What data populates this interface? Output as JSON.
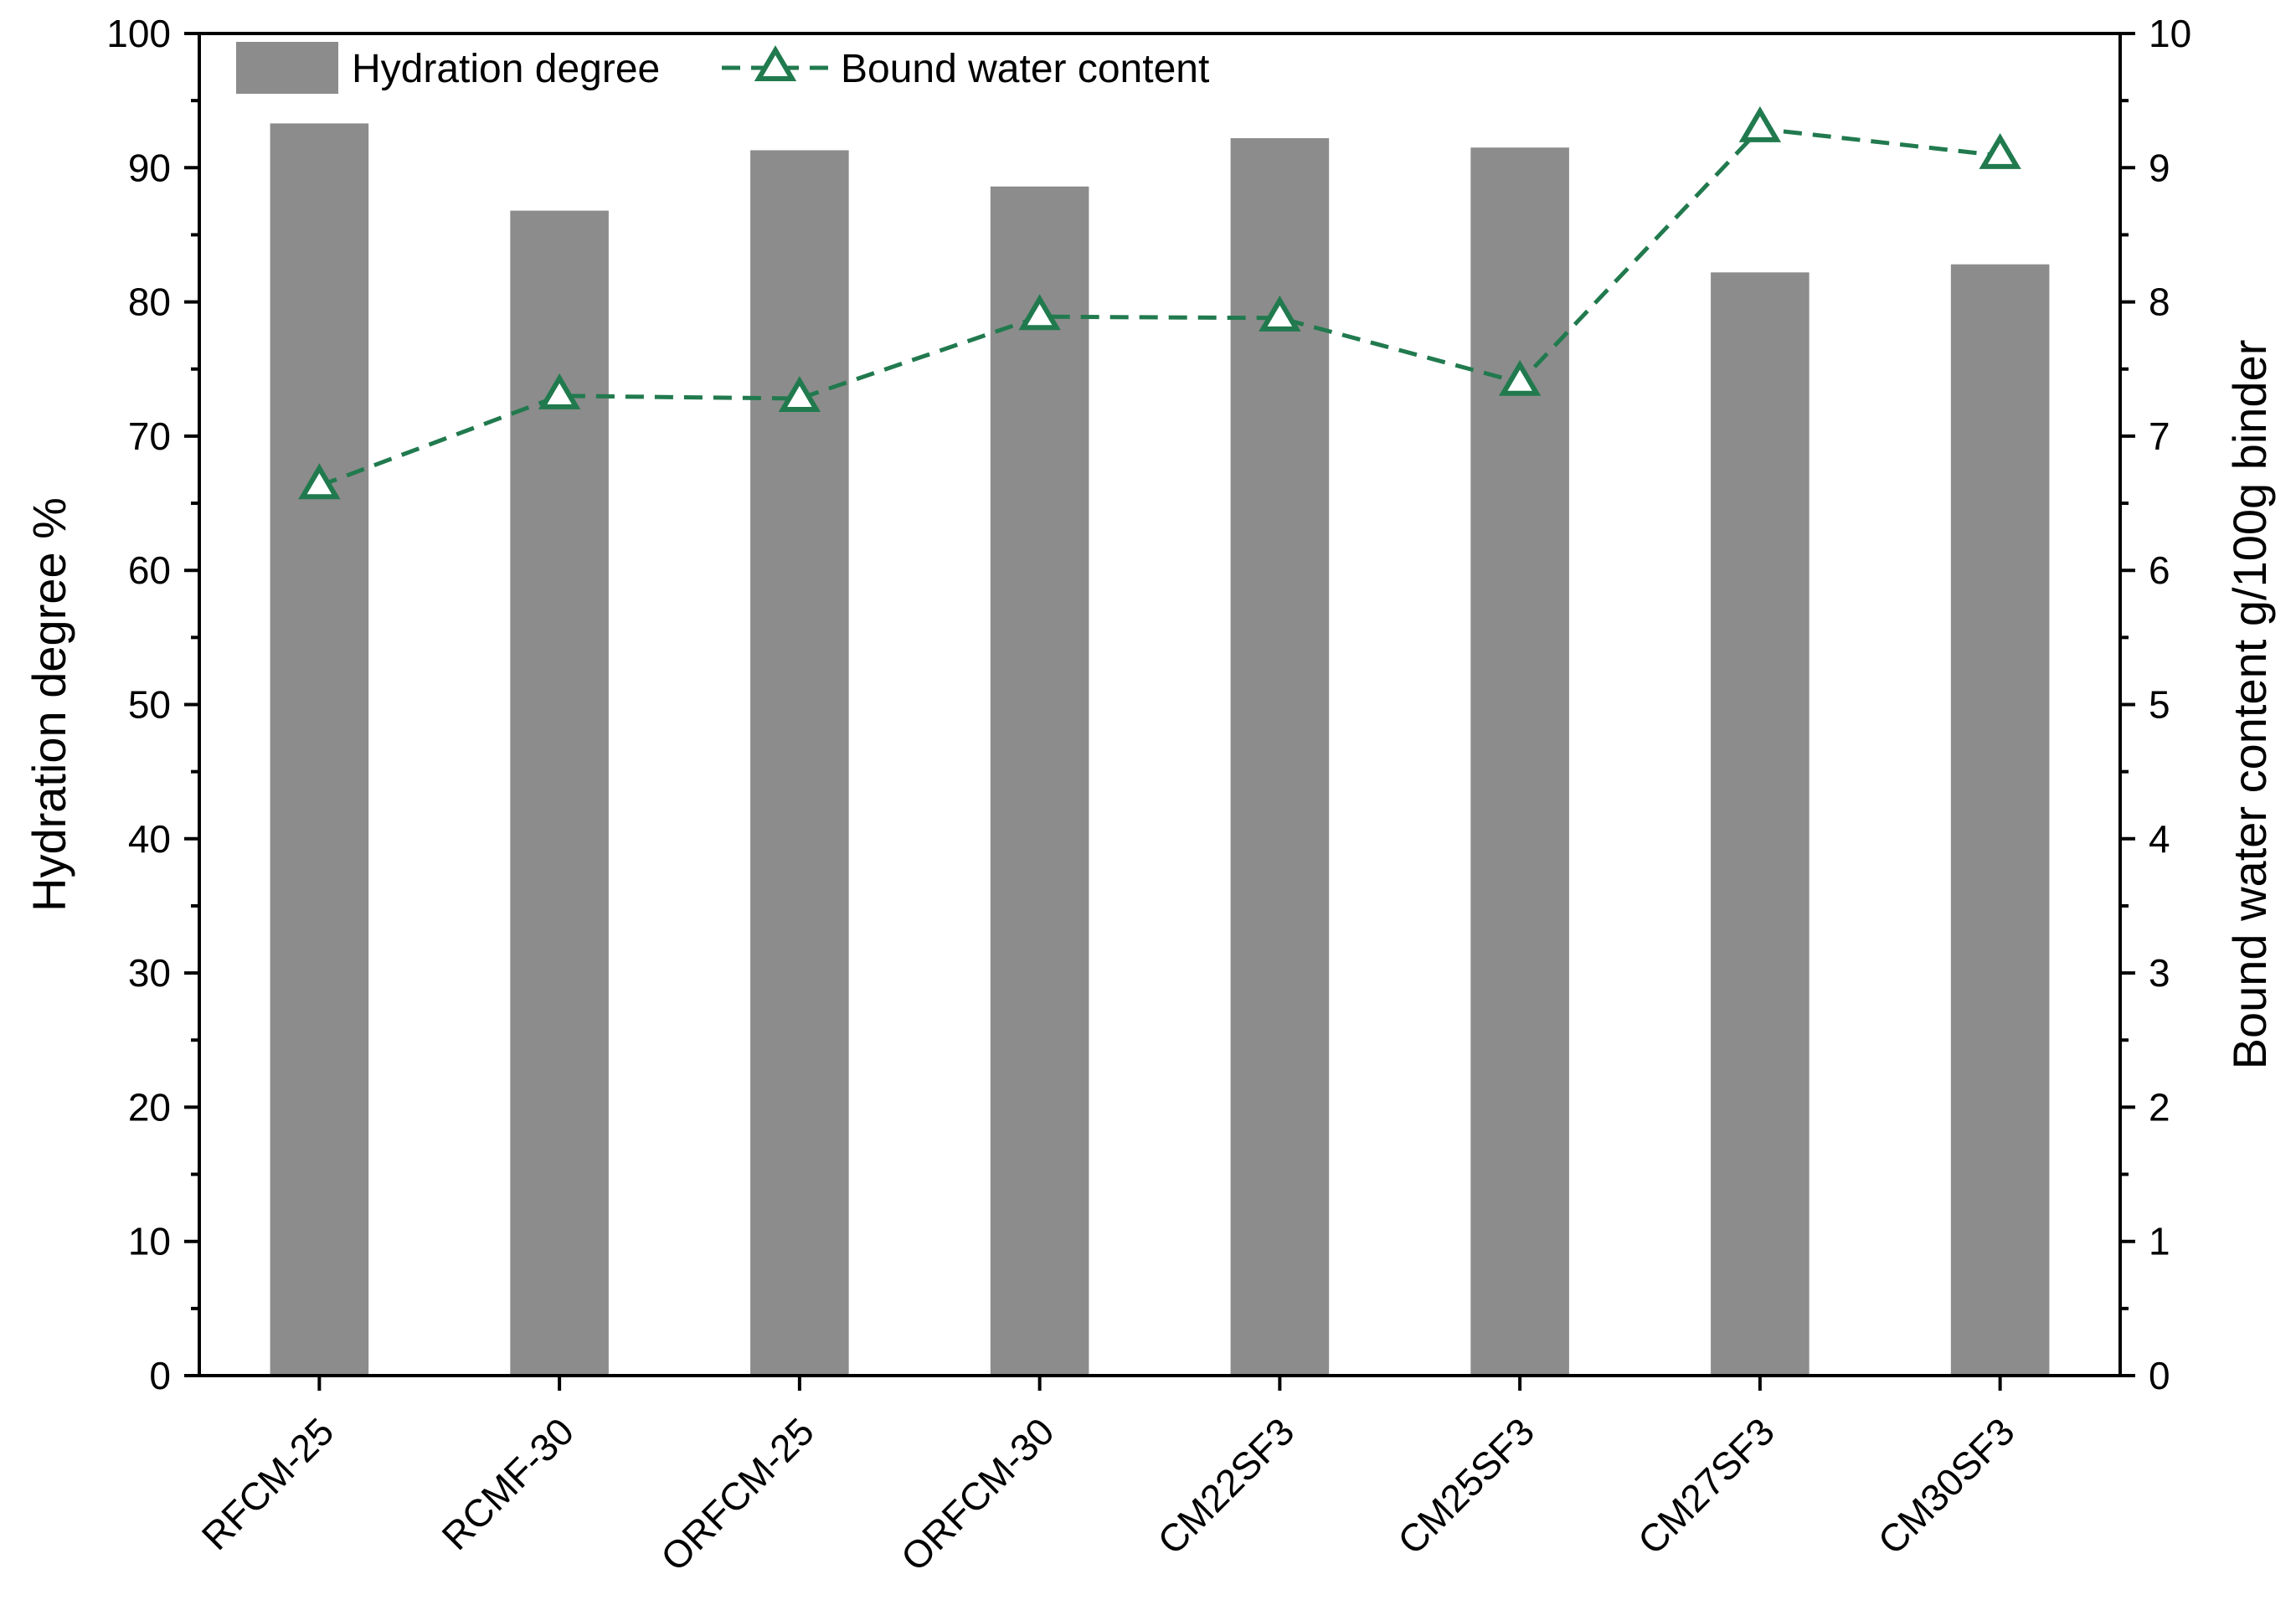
{
  "chart_data": {
    "type": "bar+line",
    "categories": [
      "RFCM-25",
      "RCMF-30",
      "ORFCM-25",
      "ORFCM-30",
      "CM22SF3",
      "CM25SF3",
      "CM27SF3",
      "CM30SF3"
    ],
    "series": [
      {
        "name": "Hydration degree",
        "type": "bar",
        "axis": "left",
        "color": "#8c8c8c",
        "values": [
          93.3,
          86.8,
          91.3,
          88.6,
          92.2,
          91.5,
          82.2,
          82.8
        ]
      },
      {
        "name": "Bound water content",
        "type": "line",
        "axis": "right",
        "color": "#217a4e",
        "line_style": "dashed",
        "marker": "triangle-open",
        "values": [
          6.63,
          7.3,
          7.28,
          7.89,
          7.88,
          7.4,
          9.29,
          9.09
        ]
      }
    ],
    "ylabel": "Hydration degree %",
    "y2label": "Bound water content g/100g binder",
    "ylim": [
      0,
      100
    ],
    "y2lim": [
      0,
      10
    ],
    "yticks": [
      "0",
      "10",
      "20",
      "30",
      "40",
      "50",
      "60",
      "70",
      "80",
      "90",
      "100"
    ],
    "y2ticks": [
      "0",
      "1",
      "2",
      "3",
      "4",
      "5",
      "6",
      "7",
      "8",
      "9",
      "10"
    ],
    "grid": false,
    "legend_position": "top-left"
  }
}
